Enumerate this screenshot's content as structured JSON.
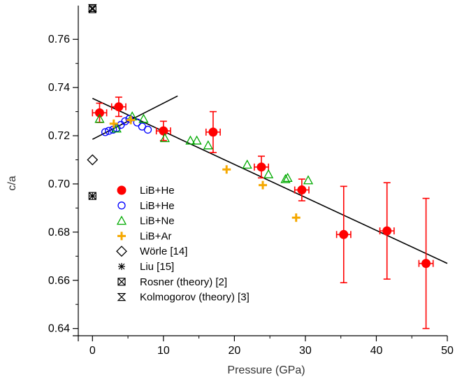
{
  "chart_data": {
    "type": "scatter",
    "xlabel": "Pressure (GPa)",
    "ylabel": "c/a",
    "xlim": [
      -2,
      50
    ],
    "ylim": [
      0.637,
      0.774
    ],
    "xticks": [
      0,
      10,
      20,
      30,
      40,
      50
    ],
    "yticks": [
      0.64,
      0.66,
      0.68,
      0.7,
      0.72,
      0.74,
      0.76
    ],
    "ytick_labels": [
      "0.64",
      "0.66",
      "0.68",
      "0.70",
      "0.72",
      "0.74",
      "0.76"
    ],
    "grid": false,
    "legend_position": "left",
    "series": [
      {
        "name": "LiB+He",
        "marker": "filled-circle",
        "color": "#ff0000",
        "points": [
          {
            "x": 1.0,
            "y": 0.7295,
            "xerr": 1.0,
            "yerr": 0.004
          },
          {
            "x": 3.7,
            "y": 0.732,
            "xerr": 1.0,
            "yerr": 0.004
          },
          {
            "x": 10.0,
            "y": 0.722,
            "xerr": 1.0,
            "yerr": 0.004
          },
          {
            "x": 17.0,
            "y": 0.7215,
            "xerr": 1.0,
            "yerr": 0.0085
          },
          {
            "x": 23.8,
            "y": 0.707,
            "xerr": 1.0,
            "yerr": 0.0045
          },
          {
            "x": 29.5,
            "y": 0.6975,
            "xerr": 1.0,
            "yerr": 0.0045
          },
          {
            "x": 35.4,
            "y": 0.679,
            "xerr": 1.0,
            "yerr": 0.02
          },
          {
            "x": 41.5,
            "y": 0.6805,
            "xerr": 1.0,
            "yerr": 0.02
          },
          {
            "x": 47.0,
            "y": 0.667,
            "xerr": 1.0,
            "yerr": 0.027
          }
        ]
      },
      {
        "name": "LiB+He",
        "marker": "open-circle",
        "color": "#0000ff",
        "points": [
          {
            "x": 1.8,
            "y": 0.7215
          },
          {
            "x": 2.3,
            "y": 0.722
          },
          {
            "x": 2.9,
            "y": 0.7225
          },
          {
            "x": 3.4,
            "y": 0.7232
          },
          {
            "x": 4.0,
            "y": 0.7245
          },
          {
            "x": 4.6,
            "y": 0.726
          },
          {
            "x": 5.2,
            "y": 0.727
          },
          {
            "x": 6.3,
            "y": 0.7255
          },
          {
            "x": 7.0,
            "y": 0.7238
          },
          {
            "x": 7.8,
            "y": 0.7225
          }
        ]
      },
      {
        "name": "LiB+Ne",
        "marker": "open-triangle",
        "color": "#00aa00",
        "points": [
          {
            "x": 1.0,
            "y": 0.727
          },
          {
            "x": 3.4,
            "y": 0.723
          },
          {
            "x": 5.6,
            "y": 0.728
          },
          {
            "x": 7.2,
            "y": 0.727
          },
          {
            "x": 10.2,
            "y": 0.719
          },
          {
            "x": 13.8,
            "y": 0.718
          },
          {
            "x": 14.7,
            "y": 0.718
          },
          {
            "x": 16.3,
            "y": 0.716
          },
          {
            "x": 21.8,
            "y": 0.708
          },
          {
            "x": 24.8,
            "y": 0.704
          },
          {
            "x": 27.2,
            "y": 0.702
          },
          {
            "x": 27.5,
            "y": 0.7025
          },
          {
            "x": 30.4,
            "y": 0.7015
          }
        ]
      },
      {
        "name": "LiB+Ar",
        "marker": "plus",
        "color": "#f5a800",
        "points": [
          {
            "x": 3.0,
            "y": 0.725
          },
          {
            "x": 5.4,
            "y": 0.7265
          },
          {
            "x": 18.9,
            "y": 0.706
          },
          {
            "x": 24.0,
            "y": 0.6995
          },
          {
            "x": 28.7,
            "y": 0.686
          }
        ]
      },
      {
        "name": "Wörle [14]",
        "marker": "open-diamond",
        "color": "#000000",
        "points": [
          {
            "x": 0.0,
            "y": 0.71
          }
        ]
      },
      {
        "name": "Liu [15]",
        "marker": "asterisk",
        "color": "#000000",
        "points": [
          {
            "x": 0.0,
            "y": 0.695
          }
        ]
      },
      {
        "name": "Rosner (theory) [2]",
        "marker": "bowtie",
        "color": "#000000",
        "points": [
          {
            "x": 0.0,
            "y": 0.7725
          },
          {
            "x": 0.0,
            "y": 0.695
          }
        ]
      },
      {
        "name": "Kolmogorov (theory) [3]",
        "marker": "hourglass",
        "color": "#000000",
        "points": [
          {
            "x": 0.0,
            "y": 0.773
          }
        ]
      }
    ],
    "lines": [
      {
        "x": [
          0,
          50
        ],
        "y": [
          0.7355,
          0.667
        ]
      },
      {
        "x": [
          0,
          12
        ],
        "y": [
          0.7185,
          0.7365
        ]
      }
    ]
  }
}
